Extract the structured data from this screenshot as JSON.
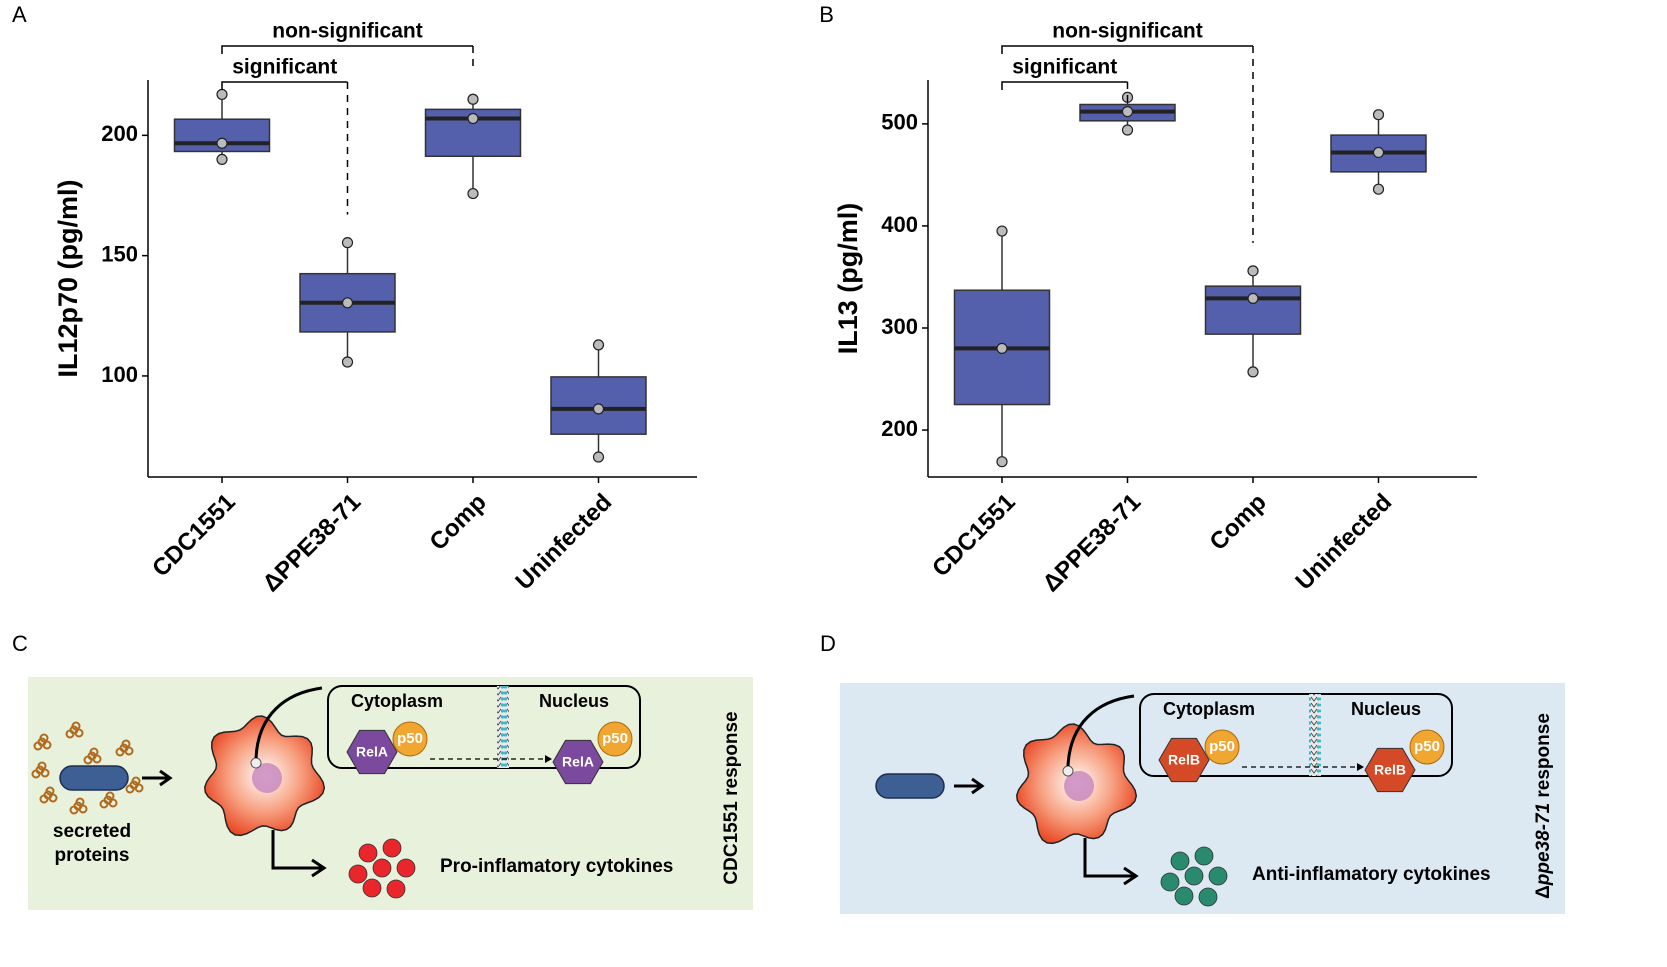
{
  "chart_data": [
    {
      "type": "box",
      "panel": "A",
      "ylabel": "IL12p70 (pg/ml)",
      "color": "#5560ad",
      "categories": [
        "CDC1551",
        "ΔPPE38-71",
        "Comp",
        "Uninfected"
      ],
      "boxes": [
        {
          "min": 190,
          "q1": 193.3,
          "median": 196.7,
          "q3": 206.7,
          "max": 217,
          "points": [
            217,
            196.7,
            190
          ]
        },
        {
          "min": 105.8,
          "q1": 118.3,
          "median": 130.4,
          "q3": 142.5,
          "max": 155.4,
          "points": [
            155.4,
            130.4,
            105.8
          ]
        },
        {
          "min": 175.8,
          "q1": 191.3,
          "median": 207,
          "q3": 210.8,
          "max": 215,
          "points": [
            215,
            207,
            175.8
          ]
        },
        {
          "min": 66.3,
          "q1": 75.8,
          "median": 86.3,
          "q3": 99.6,
          "max": 112.9,
          "points": [
            112.9,
            86.3,
            66.3
          ]
        }
      ],
      "brackets": [
        "significant",
        "non-significant"
      ],
      "ylim": [
        58,
        223
      ],
      "yticks": [
        100,
        150,
        200
      ]
    },
    {
      "type": "box",
      "panel": "B",
      "ylabel": "IL13 (pg/ml)",
      "color": "#5560ad",
      "categories": [
        "CDC1551",
        "ΔPPE38-71",
        "Comp",
        "Uninfected"
      ],
      "boxes": [
        {
          "min": 169,
          "q1": 225,
          "median": 280,
          "q3": 337,
          "max": 395,
          "points": [
            395,
            280,
            169
          ]
        },
        {
          "min": 494,
          "q1": 503,
          "median": 512,
          "q3": 519,
          "max": 526,
          "points": [
            526,
            512,
            494
          ]
        },
        {
          "min": 257,
          "q1": 294,
          "median": 329,
          "q3": 341,
          "max": 356,
          "points": [
            356,
            329,
            257
          ]
        },
        {
          "min": 436,
          "q1": 453,
          "median": 472,
          "q3": 489,
          "max": 509,
          "points": [
            509,
            472,
            436
          ]
        }
      ],
      "brackets": [
        "significant",
        "non-significant"
      ],
      "ylim": [
        154,
        543
      ],
      "yticks": [
        200,
        300,
        400,
        500
      ]
    }
  ],
  "diagrams": [
    {
      "panel": "C",
      "cytoplasm": "Cytoplasm",
      "nucleus": "Nucleus",
      "p50_left": "p50",
      "factor_left": "RelA",
      "p50_right": "p50",
      "factor_right": "RelA",
      "secreted": [
        "secreted",
        "proteins"
      ],
      "cytokines": "Pro-inflamatory cytokines",
      "side_label": [
        "CDC1551 response"
      ]
    },
    {
      "panel": "D",
      "cytoplasm": "Cytoplasm",
      "nucleus": "Nucleus",
      "p50_left": "p50",
      "factor_left": "RelB",
      "p50_right": "p50",
      "factor_right": "RelB",
      "cytokines": "Anti-inflamatory cytokines",
      "side_label": [
        "Δ",
        "ppe38-71",
        " response"
      ]
    }
  ]
}
